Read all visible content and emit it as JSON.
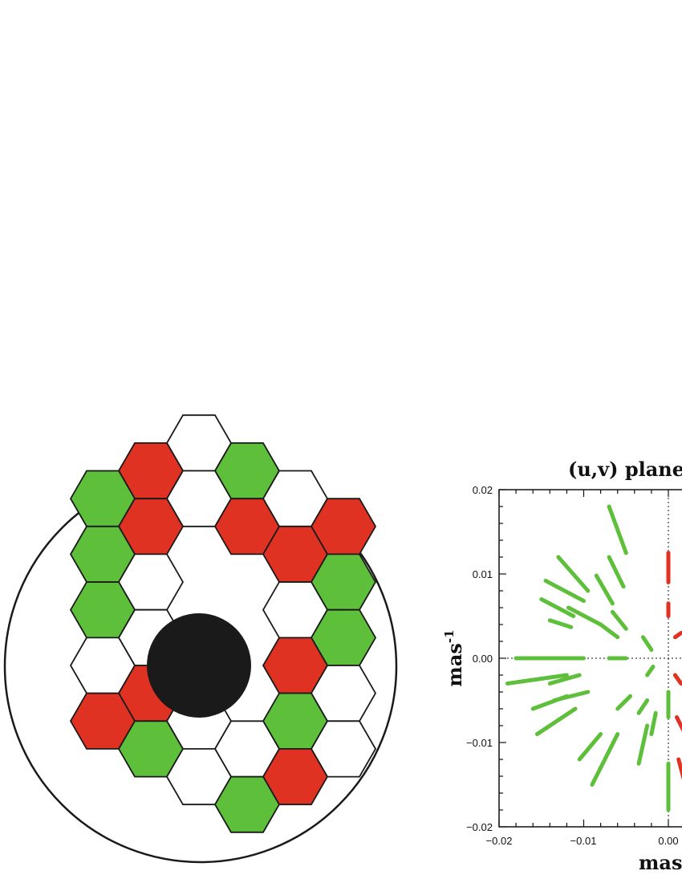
{
  "colors": {
    "green": "#5dbf3a",
    "red": "#e03222",
    "white": "#ffffff",
    "black": "#1a1a1a"
  },
  "pupil": {
    "description_hexes": "segmented aperture with central obscuration",
    "hexes": [
      {
        "q": 0,
        "r": -4,
        "c": "white"
      },
      {
        "q": 1,
        "r": -4,
        "c": "green"
      },
      {
        "q": 2,
        "r": -4,
        "c": "white"
      },
      {
        "q": 3,
        "r": -4,
        "c": "red"
      },
      {
        "q": -1,
        "r": -3,
        "c": "red"
      },
      {
        "q": 0,
        "r": -3,
        "c": "white"
      },
      {
        "q": 1,
        "r": -3,
        "c": "red"
      },
      {
        "q": 2,
        "r": -3,
        "c": "red"
      },
      {
        "q": 3,
        "r": -3,
        "c": "green"
      },
      {
        "q": -2,
        "r": -2,
        "c": "green"
      },
      {
        "q": -1,
        "r": -2,
        "c": "red"
      },
      {
        "q": 2,
        "r": -2,
        "c": "white"
      },
      {
        "q": 3,
        "r": -2,
        "c": "green"
      },
      {
        "q": -2,
        "r": -1,
        "c": "green"
      },
      {
        "q": -1,
        "r": -1,
        "c": "white"
      },
      {
        "q": 2,
        "r": -1,
        "c": "red"
      },
      {
        "q": 3,
        "r": -1,
        "c": "white"
      },
      {
        "q": -2,
        "r": 0,
        "c": "green"
      },
      {
        "q": -1,
        "r": 0,
        "c": "white"
      },
      {
        "q": 2,
        "r": 0,
        "c": "green"
      },
      {
        "q": 3,
        "r": 0,
        "c": "white"
      },
      {
        "q": -2,
        "r": 1,
        "c": "white"
      },
      {
        "q": -1,
        "r": 1,
        "c": "red"
      },
      {
        "q": 0,
        "r": 1,
        "c": "white"
      },
      {
        "q": 1,
        "r": 1,
        "c": "white"
      },
      {
        "q": 2,
        "r": 1,
        "c": "red"
      },
      {
        "q": -2,
        "r": 2,
        "c": "red"
      },
      {
        "q": -1,
        "r": 2,
        "c": "green"
      },
      {
        "q": 0,
        "r": 2,
        "c": "white"
      },
      {
        "q": 1,
        "r": 2,
        "c": "green"
      }
    ]
  },
  "chart_data": {
    "type": "scatter",
    "title": "(u,v) plane",
    "xlabel": "mas",
    "ylabel": "mas-1",
    "xlim": [
      -0.02,
      0.02
    ],
    "ylim": [
      -0.02,
      0.02
    ],
    "x_ticks": [
      "−0.02",
      "−0.01",
      "0.00"
    ],
    "y_ticks": [
      "0.02",
      "0.01",
      "0.00",
      "−0.01",
      "−0.02"
    ],
    "series": [
      {
        "color": "green",
        "segments": [
          [
            -0.007,
            0.018,
            -0.005,
            0.0125
          ],
          [
            -0.007,
            0.012,
            -0.0053,
            0.0085
          ],
          [
            -0.0085,
            0.0098,
            -0.0066,
            0.0065
          ],
          [
            -0.013,
            0.012,
            -0.0095,
            0.008
          ],
          [
            -0.0145,
            0.0092,
            -0.01,
            0.0068
          ],
          [
            -0.015,
            0.007,
            -0.0112,
            0.005
          ],
          [
            -0.0118,
            0.006,
            -0.008,
            0.004
          ],
          [
            -0.014,
            0.0045,
            -0.0115,
            0.0037
          ],
          [
            -0.008,
            0.004,
            -0.006,
            0.0025
          ],
          [
            -0.0066,
            0.0055,
            -0.005,
            0.0035
          ],
          [
            -0.003,
            0.0025,
            -0.002,
            0.001
          ],
          [
            -0.018,
            0.0,
            -0.01,
            0.0
          ],
          [
            -0.007,
            0.0,
            -0.005,
            0.0
          ],
          [
            -0.019,
            -0.003,
            -0.012,
            -0.002
          ],
          [
            -0.014,
            -0.003,
            -0.0105,
            -0.002
          ],
          [
            -0.0135,
            -0.005,
            -0.0095,
            -0.004
          ],
          [
            -0.016,
            -0.006,
            -0.012,
            -0.0045
          ],
          [
            -0.0155,
            -0.009,
            -0.011,
            -0.006
          ],
          [
            -0.006,
            -0.006,
            -0.0045,
            -0.0045
          ],
          [
            -0.0025,
            -0.002,
            -0.0018,
            -0.001
          ],
          [
            -0.0035,
            -0.0065,
            -0.0025,
            -0.005
          ],
          [
            -0.0105,
            -0.012,
            -0.008,
            -0.009
          ],
          [
            -0.009,
            -0.015,
            -0.006,
            -0.009
          ],
          [
            -0.0035,
            -0.0125,
            -0.0025,
            -0.008
          ],
          [
            -0.002,
            -0.009,
            -0.0015,
            -0.0065
          ],
          [
            0.0,
            -0.004,
            0.0,
            -0.007
          ],
          [
            0.0,
            -0.0125,
            0.0,
            -0.018
          ]
        ]
      },
      {
        "color": "red",
        "segments": [
          [
            0.0,
            0.0125,
            0.0,
            0.009
          ],
          [
            0.0,
            0.0065,
            0.0,
            0.005
          ],
          [
            0.0008,
            0.0025,
            0.0015,
            0.003
          ],
          [
            0.0008,
            -0.002,
            0.0015,
            -0.003
          ],
          [
            0.001,
            -0.007,
            0.0025,
            -0.01
          ],
          [
            0.0012,
            -0.012,
            0.002,
            -0.015
          ]
        ]
      }
    ]
  }
}
